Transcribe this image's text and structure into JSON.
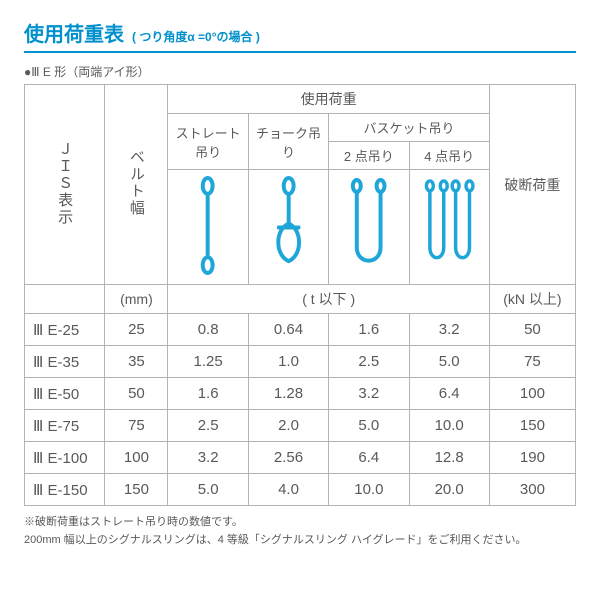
{
  "title": {
    "main": "使用荷重表",
    "sub": "( つり角度α =0°の場合 )"
  },
  "subhead": "●Ⅲ E 形（両端アイ形）",
  "headers": {
    "jis": "ＪＩＳ表示",
    "belt": "ベルト幅",
    "usage": "使用荷重",
    "straight": "ストレート吊り",
    "choke": "チョーク吊り",
    "basket": "バスケット吊り",
    "basket2": "2 点吊り",
    "basket4": "4 点吊り",
    "break": "破断荷重"
  },
  "units": {
    "belt": "(mm)",
    "usage": "( t 以下 )",
    "break": "(kN 以上)"
  },
  "rows": [
    {
      "jis": "Ⅲ E-25",
      "belt": "25",
      "s": "0.8",
      "c": "0.64",
      "b2": "1.6",
      "b4": "3.2",
      "br": "50"
    },
    {
      "jis": "Ⅲ E-35",
      "belt": "35",
      "s": "1.25",
      "c": "1.0",
      "b2": "2.5",
      "b4": "5.0",
      "br": "75"
    },
    {
      "jis": "Ⅲ E-50",
      "belt": "50",
      "s": "1.6",
      "c": "1.28",
      "b2": "3.2",
      "b4": "6.4",
      "br": "100"
    },
    {
      "jis": "Ⅲ E-75",
      "belt": "75",
      "s": "2.5",
      "c": "2.0",
      "b2": "5.0",
      "b4": "10.0",
      "br": "150"
    },
    {
      "jis": "Ⅲ E-100",
      "belt": "100",
      "s": "3.2",
      "c": "2.56",
      "b2": "6.4",
      "b4": "12.8",
      "br": "190"
    },
    {
      "jis": "Ⅲ E-150",
      "belt": "150",
      "s": "5.0",
      "c": "4.0",
      "b2": "10.0",
      "b4": "20.0",
      "br": "300"
    }
  ],
  "notes": {
    "l1": "※破断荷重はストレート吊り時の数値です。",
    "l2": "200mm 幅以上のシグナルスリングは、4 等級「シグナルスリング ハイグレード」をご利用ください。"
  },
  "style": {
    "accent": "#0091cc",
    "border": "#b3b3b3",
    "text": "#595959",
    "sling": "#1fa6d9",
    "bg": "#ffffff"
  }
}
